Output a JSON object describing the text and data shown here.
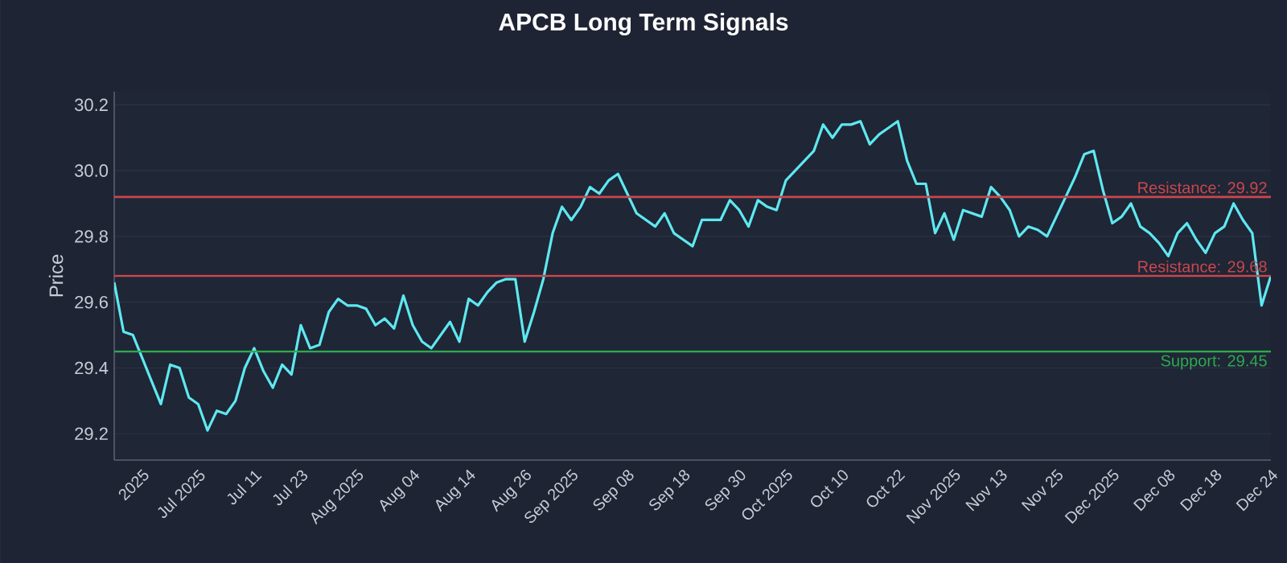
{
  "chart_data": {
    "type": "line",
    "title": "APCB Long Term Signals",
    "ylabel": "Price",
    "categories": [
      null,
      null,
      null,
      "2025",
      null,
      null,
      null,
      null,
      null,
      "Jul 2025",
      null,
      null,
      null,
      null,
      null,
      "Jul 11",
      null,
      null,
      null,
      null,
      "Jul 23",
      null,
      null,
      null,
      null,
      null,
      "Aug 2025",
      null,
      null,
      null,
      null,
      null,
      "Aug 04",
      null,
      null,
      null,
      null,
      null,
      "Aug 14",
      null,
      null,
      null,
      null,
      null,
      "Aug 26",
      null,
      null,
      null,
      null,
      "Sep 2025",
      null,
      null,
      null,
      null,
      null,
      "Sep 08",
      null,
      null,
      null,
      null,
      null,
      "Sep 18",
      null,
      null,
      null,
      null,
      null,
      "Sep 30",
      null,
      null,
      null,
      null,
      "Oct 2025",
      null,
      null,
      null,
      null,
      null,
      "Oct 10",
      null,
      null,
      null,
      null,
      null,
      "Oct 22",
      null,
      null,
      null,
      null,
      null,
      "Nov 2025",
      null,
      null,
      null,
      null,
      "Nov 13",
      null,
      null,
      null,
      null,
      null,
      "Nov 25",
      null,
      null,
      null,
      null,
      null,
      "Dec 2025",
      null,
      null,
      null,
      null,
      null,
      "Dec 08",
      null,
      null,
      null,
      null,
      "Dec 18",
      null,
      null,
      null,
      null,
      null,
      "Dec 24"
    ],
    "series": [
      {
        "color": "#5ee8f0",
        "values": [
          29.66,
          29.51,
          29.5,
          29.43,
          29.36,
          29.29,
          29.41,
          29.4,
          29.31,
          29.29,
          29.21,
          29.27,
          29.26,
          29.3,
          29.4,
          29.46,
          29.39,
          29.34,
          29.41,
          29.38,
          29.53,
          29.46,
          29.47,
          29.57,
          29.61,
          29.59,
          29.59,
          29.58,
          29.53,
          29.55,
          29.52,
          29.62,
          29.53,
          29.48,
          29.46,
          29.5,
          29.54,
          29.48,
          29.61,
          29.59,
          29.63,
          29.66,
          29.67,
          29.67,
          29.48,
          29.57,
          29.67,
          29.81,
          29.89,
          29.85,
          29.89,
          29.95,
          29.93,
          29.97,
          29.99,
          29.93,
          29.87,
          29.85,
          29.83,
          29.87,
          29.81,
          29.79,
          29.77,
          29.85,
          29.85,
          29.85,
          29.91,
          29.88,
          29.83,
          29.91,
          29.89,
          29.88,
          29.97,
          30.0,
          30.03,
          30.06,
          30.14,
          30.1,
          30.14,
          30.14,
          30.15,
          30.08,
          30.11,
          30.13,
          30.15,
          30.03,
          29.96,
          29.96,
          29.81,
          29.87,
          29.79,
          29.88,
          29.87,
          29.86,
          29.95,
          29.92,
          29.88,
          29.8,
          29.83,
          29.82,
          29.8,
          29.86,
          29.92,
          29.98,
          30.05,
          30.06,
          29.94,
          29.84,
          29.86,
          29.9,
          29.83,
          29.81,
          29.78,
          29.74,
          29.81,
          29.84,
          29.79,
          29.75,
          29.81,
          29.83,
          29.9,
          29.85,
          29.81,
          29.59,
          29.68
        ]
      }
    ],
    "ylim": [
      29.12,
      30.24
    ],
    "yticks": [
      {
        "value": 29.2,
        "label": "29.2"
      },
      {
        "value": 29.4,
        "label": "29.4"
      },
      {
        "value": 29.6,
        "label": "29.6"
      },
      {
        "value": 29.8,
        "label": "29.8"
      },
      {
        "value": 30.0,
        "label": "30.0"
      },
      {
        "value": 30.2,
        "label": "30.2"
      }
    ],
    "ref_lines": [
      {
        "axis": "y",
        "value": 29.92,
        "label": "Resistance: 29.92",
        "color": "#c9474d"
      },
      {
        "axis": "y",
        "value": 29.68,
        "label": "Resistance: 29.68",
        "color": "#c9474d"
      },
      {
        "axis": "y",
        "value": 29.45,
        "label": "Support: 29.45",
        "color": "#2fa84f"
      }
    ],
    "grid": "y",
    "marker": "none",
    "line_style": "solid"
  }
}
